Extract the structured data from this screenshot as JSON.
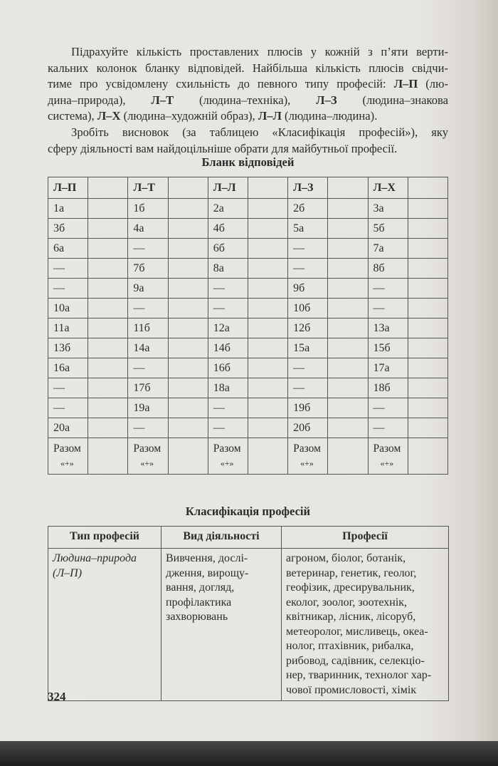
{
  "intro": {
    "lines": [
      [
        {
          "t": "Підрахуйте кількість проставлених плюсів у кожній з п’яти верти-"
        }
      ],
      [
        {
          "t": "кальних колонок бланку відповідей. Найбільша кількість плюсів свідчи-"
        }
      ],
      [
        {
          "t": "тиме про усвідомлену схильність до певного типу професій: "
        },
        {
          "t": "Л–П",
          "b": true
        },
        {
          "t": " (лю-"
        }
      ],
      [
        {
          "t": "дина–природа), "
        },
        {
          "t": "Л–Т",
          "b": true
        },
        {
          "t": " (людина–техніка), "
        },
        {
          "t": "Л–З",
          "b": true
        },
        {
          "t": " (людина–знакова"
        }
      ],
      [
        {
          "t": "система), "
        },
        {
          "t": "Л–Х",
          "b": true
        },
        {
          "t": " (людина–художній образ), "
        },
        {
          "t": "Л–Л",
          "b": true
        },
        {
          "t": " (людина–людина)."
        }
      ],
      [
        {
          "t": "Зробіть висновок (за таблицею «Класифікація професій»), яку"
        }
      ],
      [
        {
          "t": "сферу діяльності вам найдоцільніше обрати для майбутньої професії."
        }
      ]
    ]
  },
  "answers": {
    "title": "Бланк відповідей",
    "headers": [
      "Л–П",
      "Л–Т",
      "Л–Л",
      "Л–З",
      "Л–Х"
    ],
    "rows": [
      [
        "1а",
        "1б",
        "2а",
        "2б",
        "3а"
      ],
      [
        "3б",
        "4а",
        "4б",
        "5а",
        "5б"
      ],
      [
        "6а",
        "—",
        "6б",
        "—",
        "7а"
      ],
      [
        "—",
        "7б",
        "8а",
        "—",
        "8б"
      ],
      [
        "—",
        "9а",
        "—",
        "9б",
        "—"
      ],
      [
        "10а",
        "—",
        "—",
        "10б",
        "—"
      ],
      [
        "11а",
        "11б",
        "12а",
        "12б",
        "13а"
      ],
      [
        "13б",
        "14а",
        "14б",
        "15а",
        "15б"
      ],
      [
        "16а",
        "—",
        "16б",
        "—",
        "17а"
      ],
      [
        "—",
        "17б",
        "18а",
        "—",
        "18б"
      ],
      [
        "—",
        "19а",
        "—",
        "19б",
        "—"
      ],
      [
        "20а",
        "—",
        "—",
        "20б",
        "—"
      ]
    ],
    "total_label": "Разом",
    "total_sign": "«+»"
  },
  "classification": {
    "title": "Класифікація професій",
    "headers": [
      "Тип професій",
      "Вид діяльності",
      "Професії"
    ],
    "rows": [
      {
        "type_lines": [
          "Людина–природа",
          "(Л–П)"
        ],
        "activity_lines": [
          "Вивчення, дослі-",
          "дження, вирощу-",
          "вання, догляд,",
          "профілактика",
          "захворювань"
        ],
        "professions_lines": [
          "агроном, біолог, ботанік,",
          "ветеринар, генетик, геолог,",
          "геофізик, дресирувальник,",
          "еколог, зоолог, зоотехнік,",
          "квітникар, лісник, лісоруб,",
          "метеоролог, мисливець, океа-",
          "нолог, птахівник, рибалка,",
          "рибовод, садівник, селекціо-",
          "нер, тваринник, технолог хар-",
          "чової промисловості, хімік"
        ]
      }
    ]
  },
  "page_number": "324"
}
